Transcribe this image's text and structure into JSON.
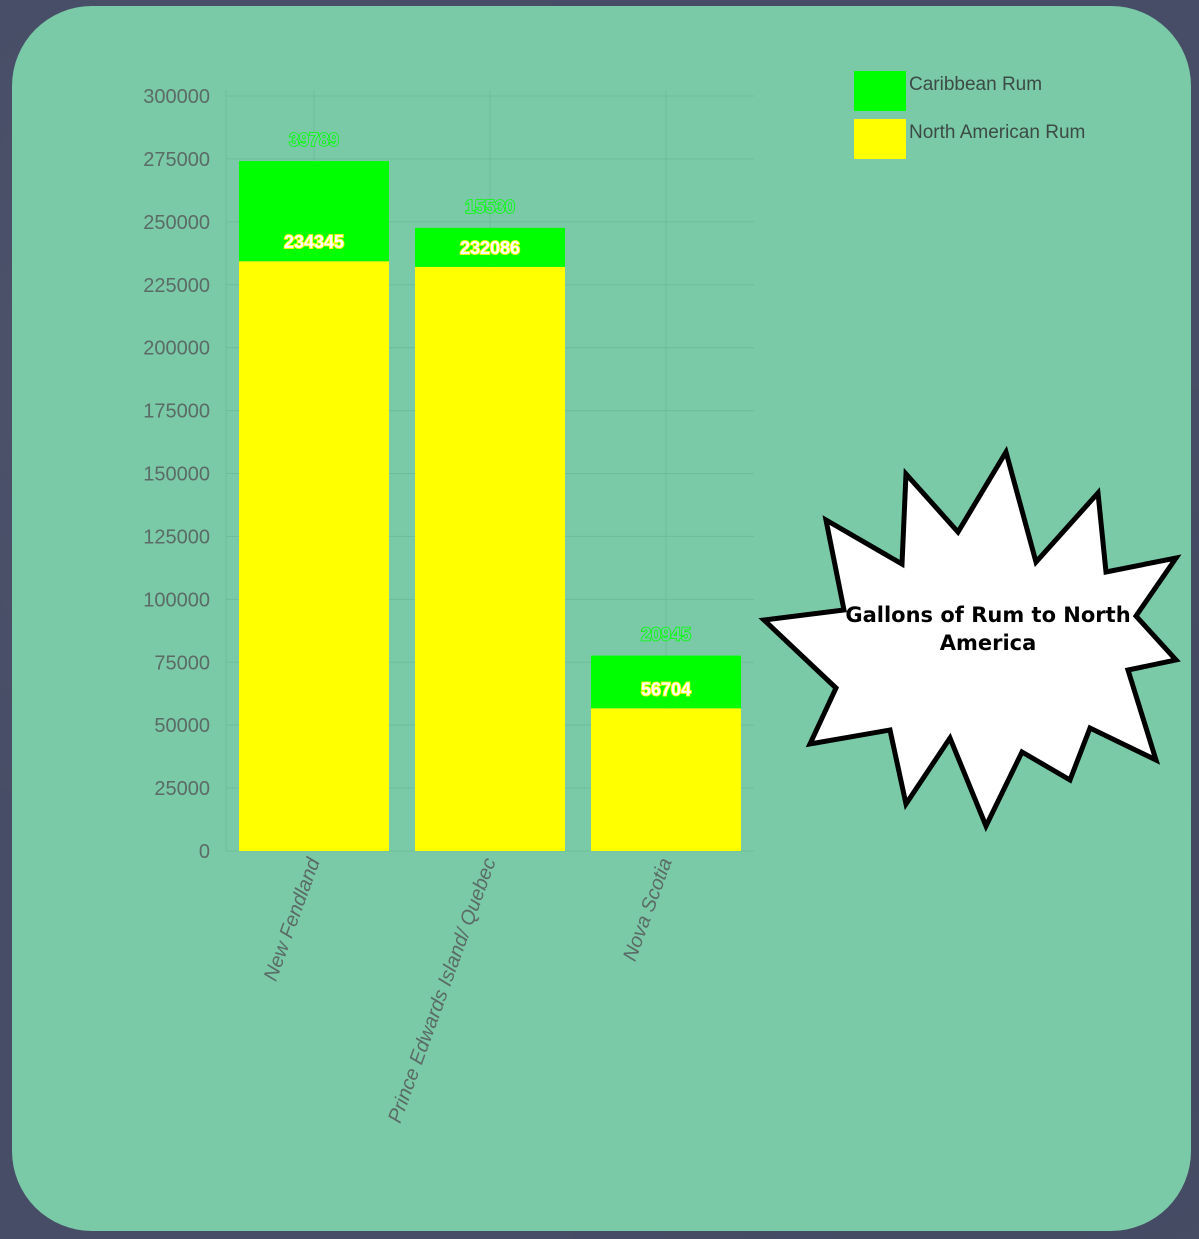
{
  "chart_data": {
    "type": "bar",
    "stacked": true,
    "title": "Gallons of Rum to North America",
    "categories": [
      "New Fendland",
      "Prince Edwards Island/ Quebec",
      "Nova Scotia"
    ],
    "series": [
      {
        "name": "North American Rum",
        "color": "#ffff00",
        "values": [
          234345,
          232086,
          56704
        ]
      },
      {
        "name": "Caribbean Rum",
        "color": "#00ff00",
        "values": [
          39789,
          15530,
          20945
        ]
      }
    ],
    "ylim": [
      0,
      300000
    ],
    "yticks": [
      "0",
      "25000",
      "50000",
      "75000",
      "100000",
      "125000",
      "150000",
      "175000",
      "200000",
      "225000",
      "250000",
      "275000",
      "300000"
    ],
    "xlabel": "",
    "ylabel": "",
    "grid": true,
    "legend_position": "top-right"
  }
}
